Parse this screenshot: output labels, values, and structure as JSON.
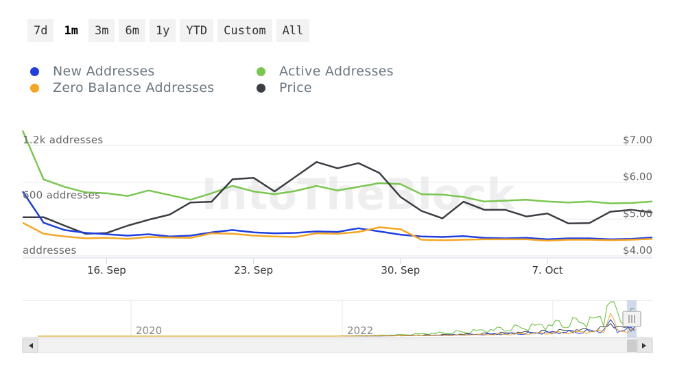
{
  "range_buttons": [
    {
      "label": "7d",
      "active": false
    },
    {
      "label": "1m",
      "active": true
    },
    {
      "label": "3m",
      "active": false
    },
    {
      "label": "6m",
      "active": false
    },
    {
      "label": "1y",
      "active": false
    },
    {
      "label": "YTD",
      "active": false
    },
    {
      "label": "Custom",
      "active": false
    },
    {
      "label": "All",
      "active": false
    }
  ],
  "legend": [
    {
      "label": "New Addresses",
      "color": "#1f3fe0"
    },
    {
      "label": "Active Addresses",
      "color": "#7ac74f"
    },
    {
      "label": "Zero Balance Addresses",
      "color": "#f5a623"
    },
    {
      "label": "Price",
      "color": "#3a3d42"
    }
  ],
  "watermark": "IntoTheBlock",
  "chart_data": {
    "type": "line",
    "x": [
      "Sep 12",
      "Sep 13",
      "Sep 14",
      "Sep 15",
      "Sep 16",
      "Sep 17",
      "Sep 18",
      "Sep 19",
      "Sep 20",
      "Sep 21",
      "Sep 22",
      "Sep 23",
      "Sep 24",
      "Sep 25",
      "Sep 26",
      "Sep 27",
      "Sep 28",
      "Sep 29",
      "Sep 30",
      "Oct 1",
      "Oct 2",
      "Oct 3",
      "Oct 4",
      "Oct 5",
      "Oct 6",
      "Oct 7",
      "Oct 8",
      "Oct 9",
      "Oct 10",
      "Oct 11",
      "Oct 12"
    ],
    "x_ticks": [
      "16. Sep",
      "23. Sep",
      "30. Sep",
      "7. Oct"
    ],
    "x_tick_dates": [
      "Sep 16",
      "Sep 23",
      "Sep 30",
      "Oct 7"
    ],
    "y_left": {
      "ticks": [
        "1.2k addresses",
        "600 addresses",
        "addresses"
      ],
      "tick_values": [
        1200,
        600,
        0
      ],
      "range": [
        0,
        1200
      ]
    },
    "y_right": {
      "ticks": [
        "$7.00",
        "$6.00",
        "$5.00",
        "$4.00"
      ],
      "tick_values": [
        7,
        6,
        5,
        4
      ],
      "range": [
        4,
        7
      ]
    },
    "grid": true,
    "series": [
      {
        "name": "Active Addresses",
        "axis": "left",
        "color": "#7ac74f",
        "values": [
          1360,
          830,
          750,
          690,
          680,
          650,
          710,
          660,
          610,
          680,
          760,
          700,
          670,
          705,
          760,
          710,
          750,
          790,
          780,
          670,
          665,
          640,
          590,
          600,
          610,
          590,
          580,
          590,
          570,
          575,
          590
        ]
      },
      {
        "name": "Price",
        "axis": "right",
        "color": "#3a3d42",
        "values": [
          5.05,
          5.05,
          4.82,
          4.6,
          4.62,
          4.82,
          4.98,
          5.12,
          5.45,
          5.47,
          6.08,
          6.12,
          5.75,
          6.15,
          6.55,
          6.38,
          6.52,
          6.25,
          5.6,
          5.22,
          5.02,
          5.47,
          5.25,
          5.25,
          5.07,
          5.15,
          4.88,
          4.89,
          5.2,
          5.25,
          5.18
        ]
      },
      {
        "name": "New Addresses",
        "axis": "left",
        "color": "#1f3fe0",
        "values": [
          700,
          360,
          280,
          250,
          235,
          220,
          235,
          210,
          220,
          255,
          280,
          255,
          245,
          250,
          265,
          260,
          300,
          265,
          230,
          210,
          205,
          215,
          195,
          190,
          195,
          180,
          190,
          190,
          180,
          185,
          200
        ]
      },
      {
        "name": "Zero Balance Addresses",
        "axis": "left",
        "color": "#f5a623",
        "values": [
          360,
          240,
          210,
          190,
          195,
          185,
          205,
          200,
          195,
          245,
          240,
          220,
          210,
          205,
          245,
          240,
          260,
          310,
          290,
          175,
          170,
          175,
          180,
          180,
          180,
          165,
          175,
          175,
          170,
          175,
          185
        ]
      }
    ],
    "navigator": {
      "x_ticks": [
        "2020",
        "2022"
      ]
    }
  }
}
